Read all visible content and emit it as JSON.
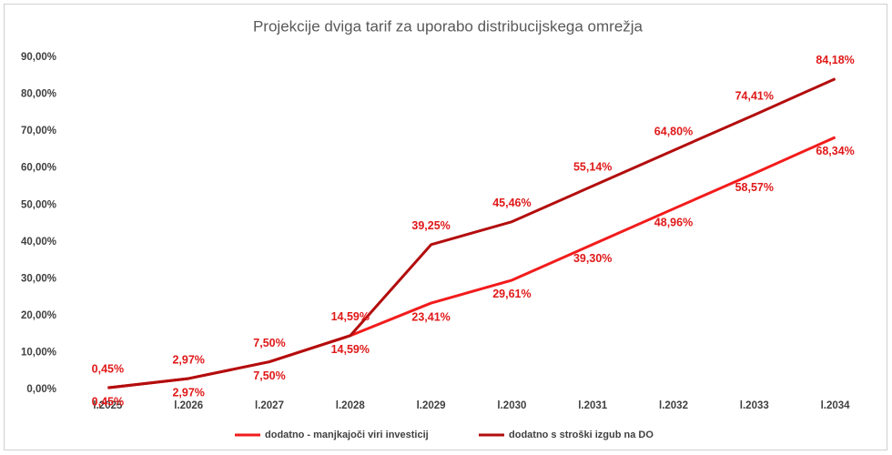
{
  "chart_data": {
    "type": "line",
    "title": "Projekcije dviga tarif za uporabo distribucijskega omrežja",
    "categories": [
      "l.2025",
      "l.2026",
      "l.2027",
      "l.2028",
      "l.2029",
      "l.2030",
      "l.2031",
      "l.2032",
      "l.2033",
      "l.2034"
    ],
    "series": [
      {
        "name": "dodatno - manjkajoči viri investicij",
        "color": "#f21c1c",
        "values": [
          0.45,
          2.97,
          7.5,
          14.59,
          23.41,
          29.61,
          39.3,
          48.96,
          58.57,
          68.34
        ],
        "value_labels": [
          "0,45%",
          "2,97%",
          "7,50%",
          "14,59%",
          "23,41%",
          "29,61%",
          "39,30%",
          "48,96%",
          "58,57%",
          "68,34%"
        ]
      },
      {
        "name": "dodatno s stroški izgub na DO",
        "color": "#b30d0d",
        "values": [
          0.45,
          2.97,
          7.5,
          14.59,
          39.25,
          45.46,
          55.14,
          64.8,
          74.41,
          84.18
        ],
        "value_labels": [
          "0,45%",
          "2,97%",
          "7,50%",
          "14,59%",
          "39,25%",
          "45,46%",
          "55,14%",
          "64,80%",
          "74,41%",
          "84,18%"
        ]
      }
    ],
    "ylim": [
      0,
      90
    ],
    "yticks": [
      {
        "value": 0,
        "label": "0,00%"
      },
      {
        "value": 10,
        "label": "10,00%"
      },
      {
        "value": 20,
        "label": "20,00%"
      },
      {
        "value": 30,
        "label": "30,00%"
      },
      {
        "value": 40,
        "label": "40,00%"
      },
      {
        "value": 50,
        "label": "50,00%"
      },
      {
        "value": 60,
        "label": "60,00%"
      },
      {
        "value": 70,
        "label": "70,00%"
      },
      {
        "value": 80,
        "label": "80,00%"
      },
      {
        "value": 90,
        "label": "90,00%"
      }
    ],
    "grid": false,
    "legend": "bottom"
  }
}
